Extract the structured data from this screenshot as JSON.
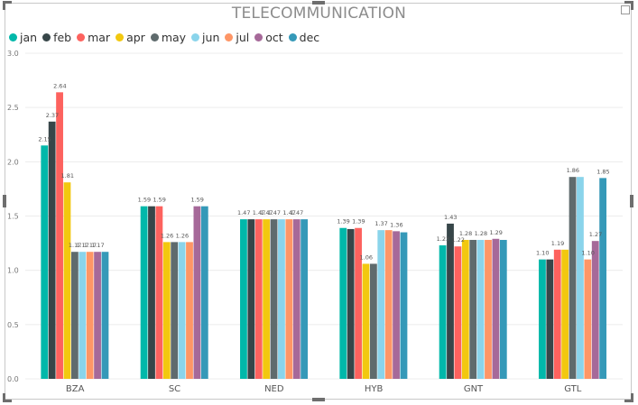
{
  "chart_data": {
    "type": "bar",
    "title": "TELECOMMUNICATION",
    "categories": [
      "BZA",
      "SC",
      "NED",
      "HYB",
      "GNT",
      "GTL"
    ],
    "ylim": [
      0,
      3.0
    ],
    "yticks": [
      "0.0",
      "0.5",
      "1.0",
      "1.5",
      "2.0",
      "2.5",
      "3.0"
    ],
    "grid": true,
    "legend_position": "top-left",
    "series": [
      {
        "name": "jan",
        "color": "#01B8AA",
        "values": [
          2.15,
          1.59,
          1.47,
          1.39,
          1.23,
          1.1
        ]
      },
      {
        "name": "feb",
        "color": "#374649",
        "values": [
          2.37,
          1.59,
          1.47,
          1.38,
          1.43,
          1.1
        ]
      },
      {
        "name": "mar",
        "color": "#FD625E",
        "values": [
          2.64,
          1.59,
          1.47,
          1.39,
          1.22,
          1.19
        ]
      },
      {
        "name": "apr",
        "color": "#F2C80F",
        "values": [
          1.81,
          1.26,
          1.47,
          1.06,
          1.28,
          1.19
        ]
      },
      {
        "name": "may",
        "color": "#5F6B6D",
        "values": [
          1.17,
          1.26,
          1.47,
          1.06,
          1.28,
          1.86
        ]
      },
      {
        "name": "jun",
        "color": "#8AD4EB",
        "values": [
          1.17,
          1.26,
          1.47,
          1.37,
          1.28,
          1.86
        ]
      },
      {
        "name": "jul",
        "color": "#FE9666",
        "values": [
          1.17,
          1.26,
          1.47,
          1.37,
          1.28,
          1.1
        ]
      },
      {
        "name": "oct",
        "color": "#A66999",
        "values": [
          1.17,
          1.59,
          1.47,
          1.36,
          1.29,
          1.27
        ]
      },
      {
        "name": "dec",
        "color": "#3599B8",
        "values": [
          1.17,
          1.59,
          1.47,
          1.35,
          1.28,
          1.85
        ]
      }
    ],
    "data_labels": [
      [
        {
          "s": 0,
          "t": "2.15"
        },
        {
          "s": 1,
          "t": "2.37"
        },
        {
          "s": 2,
          "t": "2.64"
        },
        {
          "s": 3,
          "t": "1.81"
        },
        {
          "s": 4,
          "t": "1.17"
        },
        {
          "s": 5,
          "t": "1.17"
        },
        {
          "s": 6,
          "t": "1.17"
        },
        {
          "s": 7,
          "t": "1.17"
        }
      ],
      [
        {
          "s": 0,
          "t": "1.59"
        },
        {
          "s": 2,
          "t": "1.59"
        },
        {
          "s": 3,
          "t": "1.26"
        },
        {
          "s": 5,
          "t": "1.26"
        },
        {
          "s": 7,
          "t": "1.59"
        }
      ],
      [
        {
          "s": 0,
          "t": "1.47"
        },
        {
          "s": 2,
          "t": "1.47"
        },
        {
          "s": 3,
          "t": "1.47"
        },
        {
          "s": 4,
          "t": "1.47"
        },
        {
          "s": 6,
          "t": "1.47"
        },
        {
          "s": 7,
          "t": "1.47"
        }
      ],
      [
        {
          "s": 0,
          "t": "1.39"
        },
        {
          "s": 2,
          "t": "1.39"
        },
        {
          "s": 3,
          "t": "1.06"
        },
        {
          "s": 5,
          "t": "1.37"
        },
        {
          "s": 7,
          "t": "1.36"
        }
      ],
      [
        {
          "s": 0,
          "t": "1.23"
        },
        {
          "s": 1,
          "t": "1.43"
        },
        {
          "s": 2,
          "t": "1.22"
        },
        {
          "s": 3,
          "t": "1.28"
        },
        {
          "s": 5,
          "t": "1.28"
        },
        {
          "s": 7,
          "t": "1.29"
        }
      ],
      [
        {
          "s": 0,
          "t": "1.10"
        },
        {
          "s": 2,
          "t": "1.19"
        },
        {
          "s": 4,
          "t": "1.86"
        },
        {
          "s": 6,
          "t": "1.10"
        },
        {
          "s": 7,
          "t": "1.27"
        },
        {
          "s": 8,
          "t": "1.85"
        }
      ]
    ]
  },
  "colors": {
    "gridline": "#ececec",
    "tick_text": "#777777",
    "label_text": "#555555"
  },
  "icons": {
    "focus_mode": "focus-mode-icon"
  }
}
